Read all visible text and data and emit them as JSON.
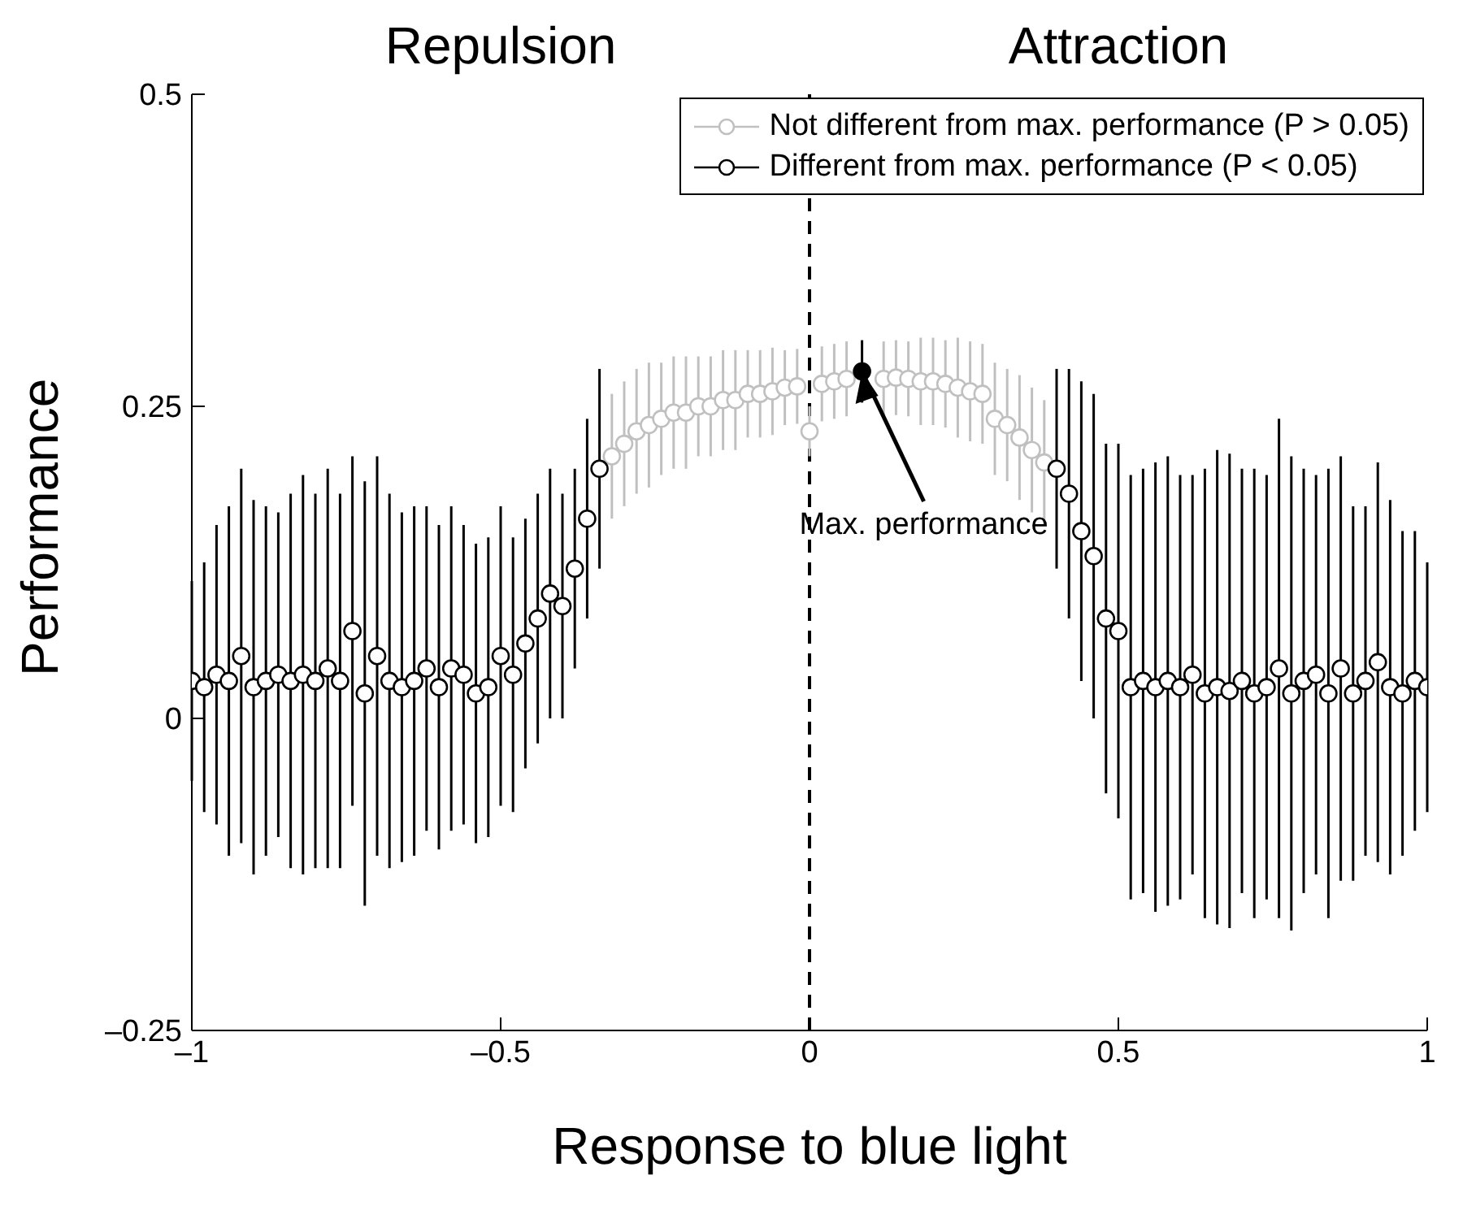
{
  "chart_data": {
    "type": "scatter",
    "xlabel": "Response to blue light",
    "ylabel": "Performance",
    "xlim": [
      -1,
      1
    ],
    "ylim": [
      -0.25,
      0.5
    ],
    "xticks": [
      {
        "value": -1,
        "label": "–1"
      },
      {
        "value": -0.5,
        "label": "–0.5"
      },
      0,
      0.5,
      1
    ],
    "yticks": [
      {
        "value": -0.25,
        "label": "–0.25"
      },
      0,
      0.25,
      0.5
    ],
    "marker": "circle",
    "legend": "top right",
    "grid": false,
    "ref_lines": [
      {
        "axis": "x",
        "value": 0,
        "color": "#000000",
        "line_style": "dashed"
      }
    ],
    "annotations": [
      "Repulsion",
      "Attraction",
      {
        "text": "Max. performance",
        "x": 0.085,
        "y": 0.278
      }
    ],
    "series": [
      {
        "name": "Not different from max. performance (P > 0.05)",
        "color": "#c0c0c0",
        "x": [
          -0.32,
          -0.3,
          -0.28,
          -0.26,
          -0.24,
          -0.22,
          -0.2,
          -0.18,
          -0.16,
          -0.14,
          -0.12,
          -0.1,
          -0.08,
          -0.06,
          -0.04,
          -0.02,
          0,
          0.02,
          0.04,
          0.06,
          0.12,
          0.14,
          0.16,
          0.18,
          0.2,
          0.22,
          0.24,
          0.26,
          0.28,
          0.3,
          0.32,
          0.34,
          0.36,
          0.38
        ],
        "values": [
          0.21,
          0.22,
          0.23,
          0.235,
          0.24,
          0.245,
          0.245,
          0.25,
          0.25,
          0.255,
          0.255,
          0.26,
          0.26,
          0.262,
          0.265,
          0.266,
          0.23,
          0.268,
          0.27,
          0.272,
          0.272,
          0.273,
          0.272,
          0.27,
          0.27,
          0.268,
          0.265,
          0.262,
          0.26,
          0.24,
          0.235,
          0.225,
          0.215,
          0.205
        ],
        "errors": [
          0.05,
          0.05,
          0.05,
          0.05,
          0.045,
          0.045,
          0.045,
          0.04,
          0.04,
          0.04,
          0.04,
          0.035,
          0.035,
          0.035,
          0.03,
          0.03,
          0.02,
          0.03,
          0.03,
          0.03,
          0.03,
          0.03,
          0.03,
          0.035,
          0.035,
          0.035,
          0.04,
          0.04,
          0.04,
          0.045,
          0.045,
          0.05,
          0.05,
          0.05
        ]
      },
      {
        "name": "Different from max. performance (P < 0.05)",
        "color": "#000000",
        "x": [
          -1,
          -0.98,
          -0.96,
          -0.94,
          -0.92,
          -0.9,
          -0.88,
          -0.86,
          -0.84,
          -0.82,
          -0.8,
          -0.78,
          -0.76,
          -0.74,
          -0.72,
          -0.7,
          -0.68,
          -0.66,
          -0.64,
          -0.62,
          -0.6,
          -0.58,
          -0.56,
          -0.54,
          -0.52,
          -0.5,
          -0.48,
          -0.46,
          -0.44,
          -0.42,
          -0.4,
          -0.38,
          -0.36,
          -0.34,
          0.4,
          0.42,
          0.44,
          0.46,
          0.48,
          0.5,
          0.52,
          0.54,
          0.56,
          0.58,
          0.6,
          0.62,
          0.64,
          0.66,
          0.68,
          0.7,
          0.72,
          0.74,
          0.76,
          0.78,
          0.8,
          0.82,
          0.84,
          0.86,
          0.88,
          0.9,
          0.92,
          0.94,
          0.96,
          0.98,
          1
        ],
        "values": [
          0.03,
          0.025,
          0.035,
          0.03,
          0.05,
          0.025,
          0.03,
          0.035,
          0.03,
          0.035,
          0.03,
          0.04,
          0.03,
          0.07,
          0.02,
          0.05,
          0.03,
          0.025,
          0.03,
          0.04,
          0.025,
          0.04,
          0.035,
          0.02,
          0.025,
          0.05,
          0.035,
          0.06,
          0.08,
          0.1,
          0.09,
          0.12,
          0.16,
          0.2,
          0.2,
          0.18,
          0.15,
          0.13,
          0.08,
          0.07,
          0.025,
          0.03,
          0.025,
          0.03,
          0.025,
          0.035,
          0.02,
          0.025,
          0.022,
          0.03,
          0.02,
          0.025,
          0.04,
          0.02,
          0.03,
          0.035,
          0.02,
          0.04,
          0.02,
          0.03,
          0.045,
          0.025,
          0.02,
          0.03,
          0.025
        ],
        "errors": [
          0.08,
          0.1,
          0.12,
          0.14,
          0.15,
          0.15,
          0.14,
          0.13,
          0.15,
          0.16,
          0.15,
          0.16,
          0.15,
          0.14,
          0.17,
          0.16,
          0.15,
          0.14,
          0.14,
          0.13,
          0.13,
          0.13,
          0.12,
          0.12,
          0.12,
          0.12,
          0.11,
          0.1,
          0.1,
          0.1,
          0.09,
          0.08,
          0.08,
          0.08,
          0.08,
          0.1,
          0.12,
          0.13,
          0.14,
          0.15,
          0.17,
          0.17,
          0.18,
          0.18,
          0.17,
          0.16,
          0.18,
          0.19,
          0.19,
          0.17,
          0.18,
          0.17,
          0.2,
          0.19,
          0.17,
          0.16,
          0.18,
          0.17,
          0.15,
          0.14,
          0.16,
          0.15,
          0.13,
          0.12,
          0.1
        ]
      },
      {
        "color": "#000000",
        "x": [
          0.085
        ],
        "values": [
          0.278
        ],
        "errors": [
          0.025
        ]
      }
    ]
  }
}
